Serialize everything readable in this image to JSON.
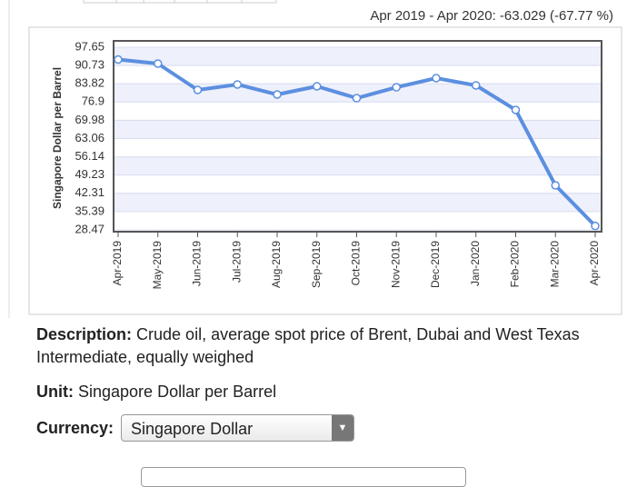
{
  "chart_data": {
    "type": "line",
    "title": "Apr 2019 - Apr 2020: -63.029 (-67.77 %)",
    "y_label": "Singapore Dollar per Barrel",
    "categories": [
      "Apr-2019",
      "May-2019",
      "Jun-2019",
      "Jul-2019",
      "Aug-2019",
      "Sep-2019",
      "Oct-2019",
      "Nov-2019",
      "Dec-2019",
      "Jan-2020",
      "Feb-2020",
      "Mar-2020",
      "Apr-2020"
    ],
    "series": [
      {
        "name": "Singapore Dollar per Barrel",
        "color": "#5b8fe0",
        "values": [
          93.0,
          91.45,
          81.47,
          83.54,
          79.75,
          82.85,
          78.37,
          82.5,
          85.95,
          83.2,
          73.9,
          45.33,
          29.97
        ]
      }
    ],
    "ylim": [
      28.47,
      97.65
    ],
    "yticks": [
      97.65,
      90.73,
      83.82,
      76.9,
      69.98,
      63.06,
      56.14,
      49.23,
      42.31,
      35.39,
      28.47
    ],
    "grid": true
  },
  "description": {
    "label": "Description:",
    "text": "Crude oil, average spot price of Brent, Dubai and West Texas Intermediate, equally weighed"
  },
  "unit": {
    "label": "Unit:",
    "text": "Singapore Dollar per Barrel"
  },
  "currency": {
    "label": "Currency:",
    "selected": "Singapore Dollar"
  }
}
